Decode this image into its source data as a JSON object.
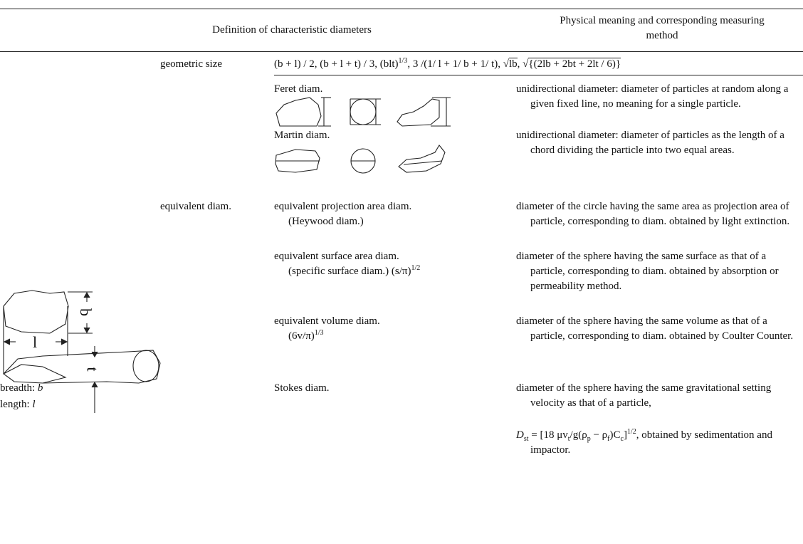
{
  "header": {
    "definition": "Definition of characteristic diameters",
    "meaning": "Physical meaning and corresponding measuring method"
  },
  "geometric": {
    "label": "geometric size",
    "formula": [
      "(b + l) / 2, (b + l + t) / 3, (blt)",
      "1/3",
      ", 3 /(1/ l + 1/ b + 1/ t), ",
      "lb",
      ", ",
      "{(2lb + 2bt + 2lt / 6)}"
    ]
  },
  "feret": {
    "name": "Feret diam.",
    "meaning": "unidirectional diameter: diameter of particles at random along a given fixed line, no meaning for a single particle."
  },
  "martin": {
    "name": "Martin diam.",
    "meaning": "unidirectional diameter: diameter of particles as the length of a chord dividing the particle into two equal areas."
  },
  "equivalent": {
    "label": "equivalent diam.",
    "projection": {
      "name": "equivalent projection area diam.",
      "alias": "(Heywood diam.)",
      "meaning": "diameter of the circle having the same area as projection area of particle, corresponding to diam. obtained by light extinction."
    },
    "surface": {
      "name": "equivalent surface area diam.",
      "alias": "(specific surface diam.) (s/π)",
      "exponent": "1/2",
      "meaning": "diameter of the sphere having the same surface as that of a particle, corresponding to diam. obtained by absorption or permeability method."
    },
    "volume": {
      "name": "equivalent volume diam.",
      "alias": "(6v/π)",
      "exponent": "1/3",
      "meaning": "diameter of the sphere having the same volume as that of a particle, corresponding to diam. obtained by Coulter Counter."
    }
  },
  "stokes": {
    "name": "Stokes diam.",
    "meaning": "diameter of the sphere having the same gravitational setting velocity as that of a particle,",
    "formula": [
      "D",
      "st",
      " = [18 μv",
      "t",
      "/g(ρ",
      "p",
      " − ρ",
      "f",
      ")C",
      "c",
      "]",
      "1/2",
      ", obtained by sedimentation and impactor."
    ]
  },
  "figure": {
    "b": "b",
    "l": "l",
    "t": "t",
    "breadth": "breadth: ",
    "breadth_symbol": "b",
    "length": "length: ",
    "length_symbol": "l"
  }
}
